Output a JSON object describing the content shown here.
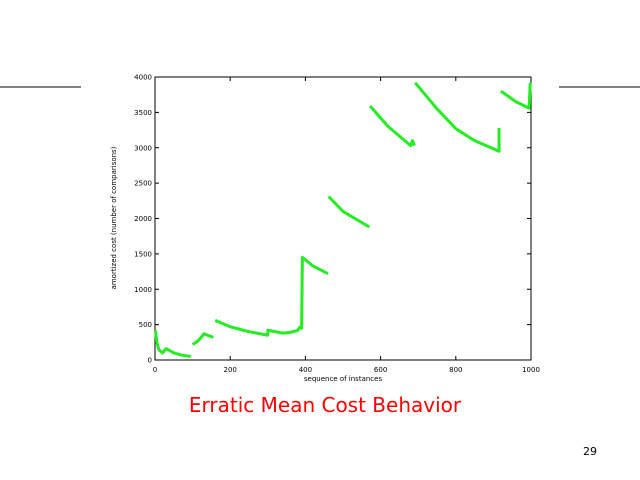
{
  "chart_data": {
    "type": "line",
    "x_label": "sequence of instances",
    "y_label": "amortized cost (number of comparisons)",
    "caption": "Erratic Mean Cost Behavior",
    "page_number": "29",
    "xlim": [
      0,
      1000
    ],
    "xticks": [
      0,
      200,
      400,
      600,
      800,
      1000
    ],
    "ylim": [
      0,
      4000
    ],
    "yticks": [
      0,
      500,
      1000,
      1500,
      2000,
      2500,
      3000,
      3500,
      4000
    ],
    "series": [
      {
        "color": "#22ee22",
        "x": [
          1,
          5,
          10,
          20,
          30,
          50,
          70,
          95,
          null,
          100,
          110,
          120,
          130,
          145,
          155,
          null,
          160,
          200,
          250,
          300,
          300,
          340,
          360,
          380,
          385,
          390,
          392,
          420,
          460,
          null,
          462,
          500,
          570,
          null,
          572,
          620,
          680,
          685,
          690,
          null,
          692,
          750,
          800,
          850,
          915,
          915,
          null,
          920,
          960,
          995,
          998
        ],
        "values": [
          420,
          250,
          150,
          100,
          160,
          100,
          70,
          50,
          null,
          220,
          250,
          300,
          370,
          340,
          320,
          null,
          560,
          470,
          400,
          350,
          420,
          380,
          390,
          420,
          460,
          450,
          1450,
          1330,
          1220,
          null,
          2310,
          2100,
          1880,
          null,
          3590,
          3300,
          3030,
          3100,
          3030,
          null,
          3920,
          3550,
          3270,
          3100,
          2950,
          3280,
          null,
          3800,
          3650,
          3560,
          3920
        ]
      }
    ]
  }
}
